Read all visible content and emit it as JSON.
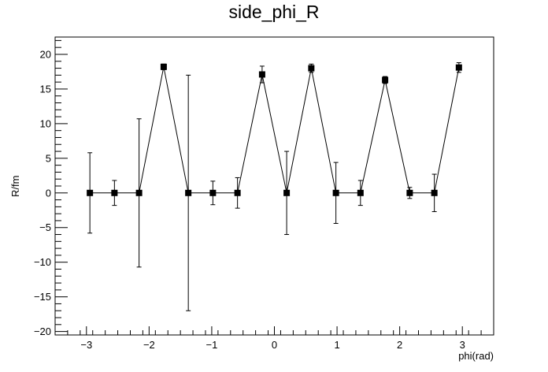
{
  "chart_data": {
    "type": "scatter",
    "title": "side_phi_R",
    "xlabel": "phi(rad)",
    "ylabel": "R/fm",
    "xlim": [
      -3.5,
      3.5
    ],
    "ylim": [
      -20.5,
      22.5
    ],
    "x_ticks": [
      -3,
      -2,
      -1,
      0,
      1,
      2,
      3
    ],
    "x_tick_labels": [
      "−3",
      "−2",
      "−1",
      "0",
      "1",
      "2",
      "3"
    ],
    "y_ticks": [
      -20,
      -15,
      -10,
      -5,
      0,
      5,
      10,
      15,
      20
    ],
    "y_tick_labels": [
      "−20",
      "−15",
      "−10",
      "−5",
      "0",
      "5",
      "10",
      "15",
      "20"
    ],
    "grid": false,
    "legend": "none",
    "marker": "square",
    "connected": true,
    "series": [
      {
        "x": [
          -2.945,
          -2.553,
          -2.16,
          -1.767,
          -1.374,
          -0.982,
          -0.589,
          -0.196,
          0.196,
          0.589,
          0.982,
          1.374,
          1.767,
          2.16,
          2.553,
          2.945
        ],
        "y": [
          0.0,
          0.0,
          0.0,
          18.2,
          0.0,
          0.0,
          0.0,
          17.1,
          0.0,
          18.0,
          0.0,
          0.0,
          16.3,
          0.0,
          0.0,
          18.1
        ],
        "yerr": [
          5.8,
          1.8,
          10.7,
          0.4,
          17.0,
          1.7,
          2.2,
          1.2,
          6.0,
          0.6,
          4.4,
          1.8,
          0.5,
          0.8,
          2.7,
          0.7
        ]
      }
    ],
    "colors": {
      "line": "#000000",
      "marker": "#000000",
      "background": "#ffffff"
    }
  }
}
